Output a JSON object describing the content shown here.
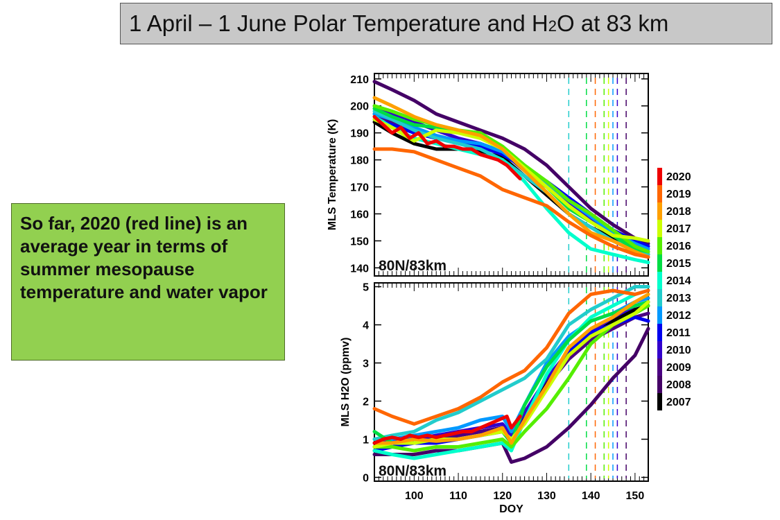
{
  "slide": {
    "title_main": "1 April – 1 June Polar Temperature and H",
    "title_sub": "2",
    "title_tail": "O at 83 km",
    "note": "So far, 2020 (red line) is an average year in terms of summer mesopause temperature and water vapor"
  },
  "colors": {
    "2020": "#ee0000",
    "2019": "#ff6600",
    "2018": "#ffa000",
    "2017": "#ccff00",
    "2016": "#55ee00",
    "2015": "#00dd44",
    "2014": "#00ffcc",
    "2013": "#22cccc",
    "2012": "#0099ff",
    "2011": "#0000ee",
    "2010": "#3300cc",
    "2009": "#4b0082",
    "2008": "#440066",
    "2007": "#000000"
  },
  "chart_data": [
    {
      "type": "line",
      "xlabel": "DOY",
      "ylabel": "MLS Temperature (K)",
      "annotation": "80N/83km",
      "xlim": [
        91,
        153
      ],
      "ylim": [
        137,
        212
      ],
      "yticks": [
        140,
        150,
        160,
        170,
        180,
        190,
        200,
        210
      ],
      "legend": {
        "placement": "right",
        "entries": [
          "2020",
          "2019",
          "2018",
          "2017",
          "2016",
          "2015",
          "2014",
          "2013",
          "2012",
          "2011",
          "2010",
          "2009",
          "2008",
          "2007"
        ]
      },
      "vlines": [
        {
          "x": 135,
          "color": "#22cccc"
        },
        {
          "x": 139,
          "color": "#00dd44"
        },
        {
          "x": 141,
          "color": "#ff6600"
        },
        {
          "x": 143,
          "color": "#55ee00"
        },
        {
          "x": 144,
          "color": "#ccff00"
        },
        {
          "x": 145,
          "color": "#0099ff"
        },
        {
          "x": 146,
          "color": "#3300cc"
        },
        {
          "x": 148,
          "color": "#440066"
        }
      ],
      "series": [
        {
          "name": "2020",
          "x": [
            91,
            93,
            95,
            97,
            99,
            101,
            103,
            105,
            107,
            109,
            111,
            113,
            115,
            117,
            119,
            121,
            124
          ],
          "y": [
            196,
            193,
            190,
            192,
            188,
            190,
            186,
            187,
            185,
            185,
            184,
            184,
            182,
            181,
            180,
            178,
            173
          ]
        },
        {
          "name": "2019",
          "x": [
            91,
            95,
            100,
            105,
            110,
            115,
            120,
            125,
            130,
            135,
            140,
            145,
            150,
            153
          ],
          "y": [
            184,
            184,
            183,
            180,
            177,
            174,
            169,
            166,
            163,
            157,
            152,
            148,
            145,
            144
          ]
        },
        {
          "name": "2018",
          "x": [
            91,
            95,
            100,
            105,
            110,
            115,
            120,
            125,
            130,
            135,
            140,
            145,
            150,
            153
          ],
          "y": [
            203,
            200,
            196,
            193,
            191,
            189,
            184,
            176,
            168,
            160,
            153,
            150,
            146,
            144
          ]
        },
        {
          "name": "2017",
          "x": [
            91,
            95,
            100,
            105,
            110,
            115,
            120,
            125,
            130,
            135,
            140,
            145,
            150,
            153
          ],
          "y": [
            195,
            192,
            187,
            191,
            190,
            188,
            184,
            177,
            170,
            163,
            157,
            152,
            151,
            150
          ]
        },
        {
          "name": "2016",
          "x": [
            91,
            95,
            100,
            105,
            110,
            115,
            120,
            125,
            130,
            135,
            140,
            145,
            150,
            153
          ],
          "y": [
            200,
            198,
            195,
            193,
            191,
            190,
            185,
            178,
            172,
            165,
            160,
            154,
            148,
            146
          ]
        },
        {
          "name": "2015",
          "x": [
            91,
            95,
            100,
            105,
            110,
            115,
            120,
            125,
            130,
            135,
            140,
            145,
            150,
            153
          ],
          "y": [
            199,
            196,
            193,
            192,
            190,
            189,
            184,
            176,
            170,
            162,
            157,
            152,
            147,
            146
          ]
        },
        {
          "name": "2014",
          "x": [
            91,
            95,
            100,
            105,
            110,
            115,
            120,
            125,
            130,
            135,
            140,
            145,
            150,
            153
          ],
          "y": [
            196,
            192,
            188,
            186,
            184,
            182,
            180,
            172,
            162,
            153,
            147,
            145,
            143,
            142
          ]
        },
        {
          "name": "2013",
          "x": [
            91,
            95,
            100,
            105,
            110,
            115,
            120,
            125,
            130,
            135,
            140,
            145,
            150,
            153
          ],
          "y": [
            198,
            195,
            191,
            188,
            186,
            184,
            180,
            174,
            168,
            160,
            155,
            150,
            147,
            145
          ]
        },
        {
          "name": "2012",
          "x": [
            91,
            95,
            100,
            105,
            110,
            115,
            120,
            125,
            130,
            135,
            140,
            145,
            150,
            153
          ],
          "y": [
            197,
            195,
            192,
            189,
            187,
            186,
            183,
            177,
            171,
            165,
            159,
            153,
            149,
            147
          ]
        },
        {
          "name": "2011",
          "x": [
            91,
            95,
            100,
            105,
            110,
            115,
            120,
            125,
            130,
            135,
            140,
            145,
            150,
            153
          ],
          "y": [
            195,
            193,
            190,
            188,
            187,
            185,
            182,
            177,
            172,
            166,
            160,
            154,
            150,
            148
          ]
        },
        {
          "name": "2010",
          "x": [
            91,
            95,
            100,
            105,
            110,
            115,
            120,
            125,
            130,
            135,
            140,
            145,
            150,
            153
          ],
          "y": [
            200,
            197,
            194,
            191,
            188,
            186,
            183,
            177,
            171,
            164,
            158,
            153,
            149,
            147
          ]
        },
        {
          "name": "2009",
          "x": [
            91,
            95,
            100,
            105,
            110,
            115,
            120,
            125,
            130,
            135,
            140,
            145,
            150,
            153
          ],
          "y": [
            197,
            194,
            191,
            189,
            187,
            186,
            183,
            176,
            170,
            164,
            158,
            152,
            148,
            146
          ]
        },
        {
          "name": "2008",
          "x": [
            91,
            95,
            100,
            105,
            110,
            115,
            120,
            125,
            130,
            135,
            140,
            145,
            150,
            153
          ],
          "y": [
            209,
            206,
            202,
            197,
            194,
            191,
            188,
            184,
            178,
            170,
            162,
            156,
            151,
            149
          ]
        },
        {
          "name": "2007",
          "x": [
            91,
            95,
            100,
            105,
            110,
            115,
            120,
            125,
            130,
            135,
            140,
            145,
            150,
            153
          ],
          "y": [
            194,
            190,
            186,
            184,
            184,
            183,
            181,
            174,
            167,
            160,
            155,
            151,
            147,
            145
          ]
        }
      ]
    },
    {
      "type": "line",
      "xlabel": "DOY",
      "ylabel": "MLS H2O (ppmv)",
      "annotation": "80N/83km",
      "xlim": [
        91,
        153
      ],
      "ylim": [
        -0.1,
        5.1
      ],
      "yticks": [
        0,
        1,
        2,
        3,
        4,
        5
      ],
      "xticks": [
        100,
        110,
        120,
        130,
        140,
        150
      ],
      "series": [
        {
          "name": "2020",
          "x": [
            91,
            93,
            95,
            97,
            99,
            101,
            103,
            105,
            107,
            109,
            111,
            113,
            115,
            117,
            119,
            121,
            122,
            124
          ],
          "y": [
            0.9,
            1.0,
            1.05,
            1.0,
            1.1,
            1.05,
            1.1,
            1.05,
            1.1,
            1.15,
            1.2,
            1.2,
            1.3,
            1.4,
            1.5,
            1.6,
            1.3,
            1.6
          ]
        },
        {
          "name": "2019",
          "x": [
            91,
            95,
            100,
            105,
            110,
            115,
            120,
            125,
            130,
            135,
            140,
            145,
            150,
            153
          ],
          "y": [
            1.8,
            1.6,
            1.4,
            1.6,
            1.8,
            2.1,
            2.5,
            2.8,
            3.4,
            4.3,
            4.8,
            4.9,
            4.8,
            4.9
          ]
        },
        {
          "name": "2018",
          "x": [
            91,
            95,
            100,
            105,
            110,
            115,
            120,
            122,
            125,
            130,
            135,
            140,
            145,
            150,
            153
          ],
          "y": [
            0.9,
            0.9,
            1.0,
            0.95,
            1.0,
            1.1,
            1.3,
            0.9,
            1.5,
            2.4,
            3.4,
            3.9,
            4.2,
            4.6,
            4.8
          ]
        },
        {
          "name": "2017",
          "x": [
            91,
            95,
            100,
            105,
            110,
            115,
            120,
            122,
            125,
            130,
            135,
            140,
            145,
            150,
            153
          ],
          "y": [
            0.8,
            0.9,
            0.9,
            1.0,
            1.0,
            1.1,
            1.2,
            1.0,
            1.4,
            2.3,
            3.2,
            3.7,
            4.0,
            4.3,
            4.6
          ]
        },
        {
          "name": "2016",
          "x": [
            91,
            95,
            100,
            105,
            110,
            115,
            120,
            122,
            125,
            130,
            135,
            140,
            145,
            150,
            153
          ],
          "y": [
            0.8,
            0.8,
            0.7,
            0.8,
            0.8,
            0.9,
            1.0,
            0.8,
            1.2,
            1.8,
            2.6,
            3.5,
            4.0,
            4.3,
            4.5
          ]
        },
        {
          "name": "2015",
          "x": [
            91,
            95,
            100,
            105,
            110,
            115,
            120,
            122,
            125,
            130,
            135,
            140,
            145,
            150,
            153
          ],
          "y": [
            1.2,
            0.9,
            0.9,
            1.0,
            1.0,
            1.1,
            1.2,
            0.9,
            1.9,
            2.9,
            3.6,
            4.1,
            4.3,
            4.5,
            4.6
          ]
        },
        {
          "name": "2014",
          "x": [
            91,
            95,
            100,
            105,
            110,
            115,
            120,
            122,
            125,
            130,
            135,
            140,
            145,
            150,
            153
          ],
          "y": [
            0.7,
            0.6,
            0.5,
            0.6,
            0.7,
            0.8,
            0.9,
            0.7,
            1.5,
            2.7,
            3.6,
            4.2,
            4.5,
            4.8,
            4.9
          ]
        },
        {
          "name": "2013",
          "x": [
            91,
            95,
            100,
            105,
            110,
            115,
            120,
            125,
            130,
            135,
            140,
            145,
            150,
            153
          ],
          "y": [
            1.0,
            1.1,
            1.2,
            1.5,
            1.7,
            2.0,
            2.3,
            2.6,
            3.1,
            4.0,
            4.4,
            4.7,
            5.0,
            5.0
          ]
        },
        {
          "name": "2012",
          "x": [
            91,
            95,
            100,
            105,
            110,
            115,
            120,
            122,
            125,
            130,
            135,
            140,
            145,
            150,
            153
          ],
          "y": [
            1.0,
            1.0,
            1.1,
            1.2,
            1.3,
            1.5,
            1.6,
            1.2,
            1.9,
            3.0,
            3.7,
            4.1,
            4.3,
            4.6,
            4.7
          ]
        },
        {
          "name": "2011",
          "x": [
            91,
            95,
            100,
            105,
            110,
            115,
            120,
            122,
            125,
            130,
            135,
            140,
            145,
            150,
            153
          ],
          "y": [
            0.7,
            0.8,
            0.9,
            0.9,
            1.0,
            1.1,
            1.2,
            1.0,
            1.5,
            2.4,
            3.3,
            3.8,
            4.0,
            4.2,
            4.1
          ]
        },
        {
          "name": "2010",
          "x": [
            91,
            95,
            100,
            105,
            110,
            115,
            120,
            122,
            125,
            130,
            135,
            140,
            145,
            150,
            153
          ],
          "y": [
            0.9,
            1.0,
            1.0,
            1.1,
            1.2,
            1.3,
            1.4,
            1.1,
            1.7,
            2.6,
            3.3,
            3.8,
            4.2,
            4.5,
            4.6
          ]
        },
        {
          "name": "2009",
          "x": [
            91,
            95,
            100,
            105,
            110,
            115,
            120,
            122,
            125,
            130,
            135,
            140,
            145,
            150,
            153
          ],
          "y": [
            0.9,
            0.9,
            1.0,
            1.0,
            1.1,
            1.2,
            1.3,
            1.0,
            1.5,
            2.4,
            3.1,
            3.6,
            3.9,
            4.2,
            4.3
          ]
        },
        {
          "name": "2008",
          "x": [
            91,
            95,
            100,
            105,
            110,
            115,
            120,
            122,
            125,
            130,
            135,
            140,
            145,
            150,
            153
          ],
          "y": [
            0.6,
            0.6,
            0.6,
            0.7,
            0.7,
            0.8,
            0.9,
            0.4,
            0.5,
            0.8,
            1.3,
            1.9,
            2.6,
            3.2,
            3.9
          ]
        },
        {
          "name": "2007",
          "x": [
            91,
            95,
            100,
            105,
            110,
            115,
            120,
            122,
            125,
            130,
            135,
            140,
            145,
            150,
            153
          ],
          "y": [
            0.8,
            0.9,
            1.0,
            1.0,
            1.1,
            1.2,
            1.3,
            1.1,
            1.6,
            2.5,
            3.3,
            3.8,
            4.1,
            4.4,
            4.5
          ]
        }
      ]
    }
  ]
}
